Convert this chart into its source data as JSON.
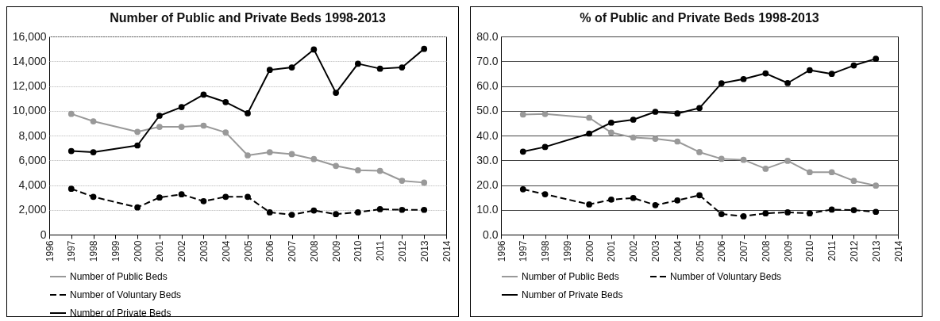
{
  "chart_data": [
    {
      "type": "line",
      "title": "Number of Public and Private Beds 1998-2013",
      "x": [
        1997,
        1998,
        2000,
        2001,
        2002,
        2003,
        2004,
        2005,
        2006,
        2007,
        2008,
        2009,
        2010,
        2011,
        2012,
        2013
      ],
      "series": [
        {
          "name": "Number of Public Beds",
          "color": "#999999",
          "line_style": "solid",
          "values": [
            9750,
            9150,
            8300,
            8700,
            8700,
            8800,
            8250,
            6400,
            6650,
            6500,
            6100,
            5550,
            5200,
            5150,
            4350,
            4200
          ]
        },
        {
          "name": "Number of Voluntary Beds",
          "color": "#000000",
          "line_style": "dashed",
          "values": [
            3700,
            3050,
            2200,
            3000,
            3250,
            2700,
            3050,
            3050,
            1800,
            1600,
            1950,
            1650,
            1800,
            2050,
            2000,
            2000
          ]
        },
        {
          "name": "Number of Private Beds",
          "color": "#000000",
          "line_style": "solid",
          "values": [
            6750,
            6650,
            7200,
            9600,
            10300,
            11300,
            10700,
            9800,
            13300,
            13500,
            14950,
            11450,
            13800,
            13400,
            13500,
            15000
          ]
        }
      ],
      "xlim": [
        1996,
        2014
      ],
      "xticks": [
        1996,
        1997,
        1998,
        1999,
        2000,
        2001,
        2002,
        2003,
        2004,
        2005,
        2006,
        2007,
        2008,
        2009,
        2010,
        2011,
        2012,
        2013,
        2014
      ],
      "ylim": [
        0,
        16000
      ],
      "yticks": [
        0,
        {
          "value": 2000,
          "label": "2,000"
        },
        {
          "value": 4000,
          "label": "4,000"
        },
        {
          "value": 6000,
          "label": "6,000"
        },
        {
          "value": 8000,
          "label": "8,000"
        },
        {
          "value": 10000,
          "label": "10,000"
        },
        {
          "value": 12000,
          "label": "12,000"
        },
        {
          "value": 14000,
          "label": "14,000"
        },
        {
          "value": 16000,
          "label": "16,000"
        }
      ],
      "grid": "y",
      "legend": "bottom",
      "marker": "circle"
    },
    {
      "type": "line",
      "title": "% of Public and Private Beds 1998-2013",
      "x": [
        1997,
        1998,
        2000,
        2001,
        2002,
        2003,
        2004,
        2005,
        2006,
        2007,
        2008,
        2009,
        2010,
        2011,
        2012,
        2013
      ],
      "series": [
        {
          "name": "Number of Public Beds",
          "color": "#999999",
          "line_style": "solid",
          "values": [
            48.5,
            48.7,
            47.2,
            41.2,
            39.2,
            38.7,
            37.6,
            33.3,
            30.6,
            30.2,
            26.6,
            29.8,
            25.2,
            25.2,
            21.7,
            19.8
          ]
        },
        {
          "name": "Number of Voluntary Beds",
          "color": "#000000",
          "line_style": "dashed",
          "values": [
            18.3,
            16.3,
            12.2,
            14.1,
            14.8,
            11.9,
            13.8,
            15.9,
            8.3,
            7.4,
            8.6,
            9.0,
            8.6,
            10.1,
            9.9,
            9.2
          ]
        },
        {
          "name": "Number of Private Beds",
          "color": "#000000",
          "line_style": "solid",
          "values": [
            33.5,
            35.4,
            40.8,
            45.2,
            46.4,
            49.6,
            48.9,
            51.1,
            61.1,
            62.8,
            65.1,
            61.2,
            66.4,
            64.9,
            68.3,
            71.0
          ]
        }
      ],
      "xlim": [
        1996,
        2014
      ],
      "xticks": [
        1996,
        1997,
        1998,
        1999,
        2000,
        2001,
        2002,
        2003,
        2004,
        2005,
        2006,
        2007,
        2008,
        2009,
        2010,
        2011,
        2012,
        2013,
        2014
      ],
      "ylim": [
        0,
        80
      ],
      "yticks": [
        {
          "value": 0,
          "label": "0.0"
        },
        {
          "value": 10,
          "label": "10.0"
        },
        {
          "value": 20,
          "label": "20.0"
        },
        {
          "value": 30,
          "label": "30.0"
        },
        {
          "value": 40,
          "label": "40.0"
        },
        {
          "value": 50,
          "label": "50.0"
        },
        {
          "value": 60,
          "label": "60.0"
        },
        {
          "value": 70,
          "label": "70.0"
        },
        {
          "value": 80,
          "label": "80.0"
        }
      ],
      "grid": "y",
      "legend": "bottom",
      "marker": "circle"
    }
  ]
}
